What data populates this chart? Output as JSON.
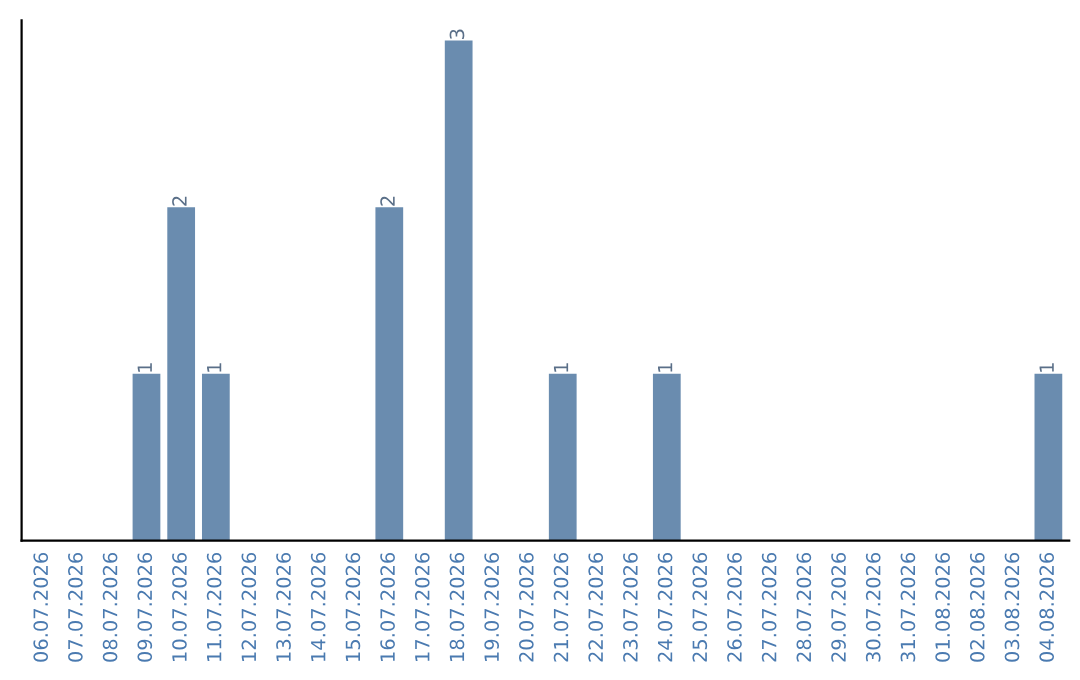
{
  "chart_data": {
    "type": "bar",
    "categories": [
      "06.07.2026",
      "07.07.2026",
      "08.07.2026",
      "09.07.2026",
      "10.07.2026",
      "11.07.2026",
      "12.07.2026",
      "13.07.2026",
      "14.07.2026",
      "15.07.2026",
      "16.07.2026",
      "17.07.2026",
      "18.07.2026",
      "19.07.2026",
      "20.07.2026",
      "21.07.2026",
      "22.07.2026",
      "23.07.2026",
      "24.07.2026",
      "25.07.2026",
      "26.07.2026",
      "27.07.2026",
      "28.07.2026",
      "29.07.2026",
      "30.07.2026",
      "31.07.2026",
      "01.08.2026",
      "02.08.2026",
      "03.08.2026",
      "04.08.2026"
    ],
    "values": [
      0,
      0,
      0,
      1,
      2,
      1,
      0,
      0,
      0,
      0,
      2,
      0,
      3,
      0,
      0,
      1,
      0,
      0,
      1,
      0,
      0,
      0,
      0,
      0,
      0,
      0,
      0,
      0,
      0,
      1
    ],
    "value_labels": [
      null,
      null,
      null,
      "1",
      "2",
      "1",
      null,
      null,
      null,
      null,
      "2",
      null,
      "3",
      null,
      null,
      "1",
      null,
      null,
      "1",
      null,
      null,
      null,
      null,
      null,
      null,
      null,
      null,
      null,
      null,
      "1"
    ],
    "color": "#6a8caf",
    "grid": false,
    "legend": false
  }
}
